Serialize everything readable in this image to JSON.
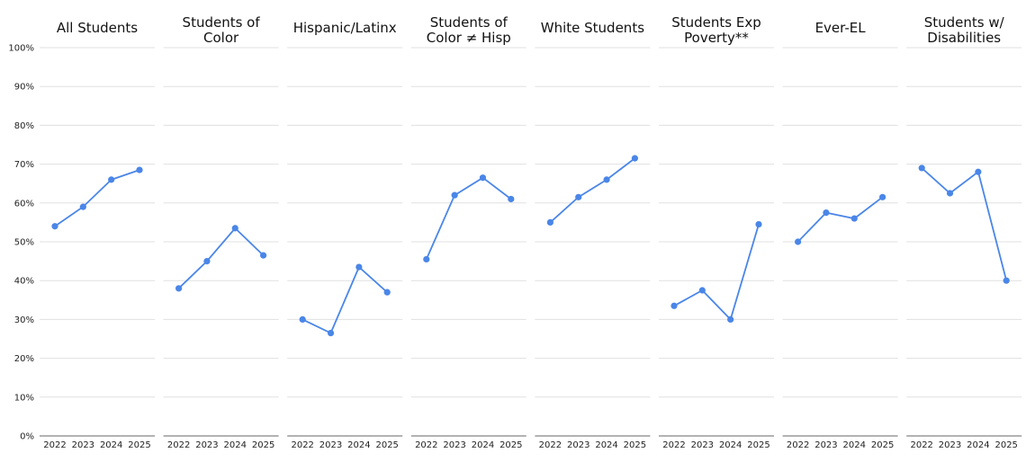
{
  "chart_data": {
    "type": "line",
    "years": [
      "2022",
      "2023",
      "2024",
      "2025"
    ],
    "y_ticks": [
      "0%",
      "10%",
      "20%",
      "30%",
      "40%",
      "50%",
      "60%",
      "70%",
      "80%",
      "90%",
      "100%"
    ],
    "ylim": [
      0,
      100
    ],
    "grid": true,
    "line_color": "#4a86e8",
    "panels": [
      {
        "title_lines": [
          "All Students"
        ],
        "values": [
          54,
          59,
          66,
          68.5
        ]
      },
      {
        "title_lines": [
          "Students of",
          "Color"
        ],
        "values": [
          38,
          45,
          53.5,
          46.5
        ]
      },
      {
        "title_lines": [
          "Hispanic/Latinx"
        ],
        "values": [
          30,
          26.5,
          43.5,
          37
        ]
      },
      {
        "title_lines": [
          "Students of",
          "Color ≠ Hisp"
        ],
        "values": [
          45.5,
          62,
          66.5,
          61
        ]
      },
      {
        "title_lines": [
          "White Students"
        ],
        "values": [
          55,
          61.5,
          66,
          71.5
        ]
      },
      {
        "title_lines": [
          "Students Exp",
          "Poverty**"
        ],
        "values": [
          33.5,
          37.5,
          30,
          54.5
        ]
      },
      {
        "title_lines": [
          "Ever-EL"
        ],
        "values": [
          50,
          57.5,
          56,
          61.5
        ]
      },
      {
        "title_lines": [
          "Students w/",
          "Disabilities"
        ],
        "values": [
          69,
          62.5,
          68,
          40
        ]
      }
    ]
  }
}
